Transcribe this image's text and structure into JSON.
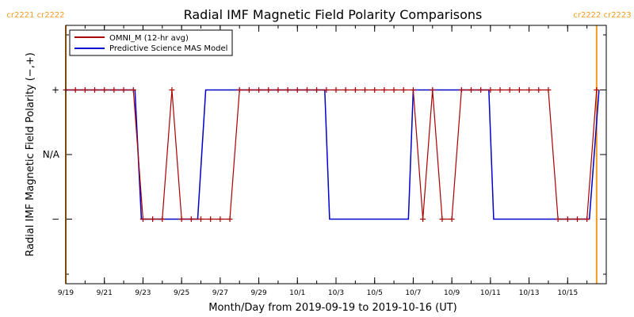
{
  "colors": {
    "omni": "#aa0000",
    "mas": "#0000cc",
    "rotation_marker": "#f39a1e",
    "axis": "#000000"
  },
  "chart_data": {
    "type": "line",
    "title": "Radial IMF Magnetic Field Polarity Comparisons",
    "xlabel": "Month/Day from 2019-09-19 to 2019-10-16 (UT)",
    "ylabel": "Radial IMF Magnetic Field Polarity (−,+)",
    "xlim": [
      "2019-09-19",
      "2019-10-17"
    ],
    "ylim": [
      -2,
      2
    ],
    "x_ticks": [
      {
        "date": "2019-09-19",
        "label": "9/19"
      },
      {
        "date": "2019-09-21",
        "label": "9/21"
      },
      {
        "date": "2019-09-23",
        "label": "9/23"
      },
      {
        "date": "2019-09-25",
        "label": "9/25"
      },
      {
        "date": "2019-09-27",
        "label": "9/27"
      },
      {
        "date": "2019-09-29",
        "label": "9/29"
      },
      {
        "date": "2019-10-01",
        "label": "10/1"
      },
      {
        "date": "2019-10-03",
        "label": "10/3"
      },
      {
        "date": "2019-10-05",
        "label": "10/5"
      },
      {
        "date": "2019-10-07",
        "label": "10/7"
      },
      {
        "date": "2019-10-09",
        "label": "10/9"
      },
      {
        "date": "2019-10-11",
        "label": "10/11"
      },
      {
        "date": "2019-10-13",
        "label": "10/13"
      },
      {
        "date": "2019-10-15",
        "label": "10/15"
      }
    ],
    "y_ticks": [
      {
        "value": 1,
        "label": "+"
      },
      {
        "value": 0,
        "label": "N/A"
      },
      {
        "value": -1,
        "label": "−"
      }
    ],
    "legend": {
      "position": "top-left",
      "entries": [
        {
          "label": "OMNI_M (12-hr avg)",
          "color": "#aa0000"
        },
        {
          "label": "Predictive Science MAS Model",
          "color": "#0000cc"
        }
      ]
    },
    "rotation_markers": [
      {
        "date": "2019-09-19T00:00",
        "label": "cr2221 cr2222",
        "label_side": "left"
      },
      {
        "date": "2019-10-16T12:00",
        "label": "cr2222 cr2223",
        "label_side": "right"
      }
    ],
    "series": [
      {
        "name": "OMNI_M (12-hr avg)",
        "markers": true,
        "points": [
          [
            "2019-09-19T00:00",
            1
          ],
          [
            "2019-09-19T12:00",
            1
          ],
          [
            "2019-09-20T00:00",
            1
          ],
          [
            "2019-09-20T12:00",
            1
          ],
          [
            "2019-09-21T00:00",
            1
          ],
          [
            "2019-09-21T12:00",
            1
          ],
          [
            "2019-09-22T00:00",
            1
          ],
          [
            "2019-09-22T12:00",
            1
          ],
          [
            "2019-09-23T00:00",
            -1
          ],
          [
            "2019-09-23T12:00",
            -1
          ],
          [
            "2019-09-24T00:00",
            -1
          ],
          [
            "2019-09-24T12:00",
            1
          ],
          [
            "2019-09-25T00:00",
            -1
          ],
          [
            "2019-09-25T12:00",
            -1
          ],
          [
            "2019-09-26T00:00",
            -1
          ],
          [
            "2019-09-26T12:00",
            -1
          ],
          [
            "2019-09-27T00:00",
            -1
          ],
          [
            "2019-09-27T12:00",
            -1
          ],
          [
            "2019-09-28T00:00",
            1
          ],
          [
            "2019-09-28T12:00",
            1
          ],
          [
            "2019-09-29T00:00",
            1
          ],
          [
            "2019-09-29T12:00",
            1
          ],
          [
            "2019-09-30T00:00",
            1
          ],
          [
            "2019-09-30T12:00",
            1
          ],
          [
            "2019-10-01T00:00",
            1
          ],
          [
            "2019-10-01T12:00",
            1
          ],
          [
            "2019-10-02T00:00",
            1
          ],
          [
            "2019-10-02T12:00",
            1
          ],
          [
            "2019-10-03T00:00",
            1
          ],
          [
            "2019-10-03T12:00",
            1
          ],
          [
            "2019-10-04T00:00",
            1
          ],
          [
            "2019-10-04T12:00",
            1
          ],
          [
            "2019-10-05T00:00",
            1
          ],
          [
            "2019-10-05T12:00",
            1
          ],
          [
            "2019-10-06T00:00",
            1
          ],
          [
            "2019-10-06T12:00",
            1
          ],
          [
            "2019-10-07T00:00",
            1
          ],
          [
            "2019-10-07T12:00",
            -1
          ],
          [
            "2019-10-08T00:00",
            1
          ],
          [
            "2019-10-08T12:00",
            -1
          ],
          [
            "2019-10-09T00:00",
            -1
          ],
          [
            "2019-10-09T12:00",
            1
          ],
          [
            "2019-10-10T00:00",
            1
          ],
          [
            "2019-10-10T12:00",
            1
          ],
          [
            "2019-10-11T00:00",
            1
          ],
          [
            "2019-10-11T12:00",
            1
          ],
          [
            "2019-10-12T00:00",
            1
          ],
          [
            "2019-10-12T12:00",
            1
          ],
          [
            "2019-10-13T00:00",
            1
          ],
          [
            "2019-10-13T12:00",
            1
          ],
          [
            "2019-10-14T00:00",
            1
          ],
          [
            "2019-10-14T12:00",
            -1
          ],
          [
            "2019-10-15T00:00",
            -1
          ],
          [
            "2019-10-15T12:00",
            -1
          ],
          [
            "2019-10-16T00:00",
            -1
          ],
          [
            "2019-10-16T12:00",
            1
          ]
        ]
      },
      {
        "name": "Predictive Science MAS Model",
        "markers": false,
        "points": [
          [
            "2019-09-19T00:00",
            1
          ],
          [
            "2019-09-22T14:00",
            1
          ],
          [
            "2019-09-22T22:00",
            -1
          ],
          [
            "2019-09-25T20:00",
            -1
          ],
          [
            "2019-09-26T06:00",
            1
          ],
          [
            "2019-10-02T10:00",
            1
          ],
          [
            "2019-10-02T16:00",
            -1
          ],
          [
            "2019-10-06T18:00",
            -1
          ],
          [
            "2019-10-07T00:00",
            1
          ],
          [
            "2019-10-10T22:00",
            1
          ],
          [
            "2019-10-11T04:00",
            -1
          ],
          [
            "2019-10-16T03:00",
            -1
          ],
          [
            "2019-10-16T15:00",
            1
          ]
        ]
      }
    ]
  }
}
